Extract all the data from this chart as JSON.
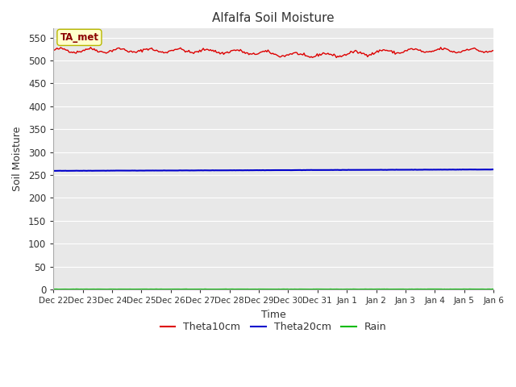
{
  "title": "Alfalfa Soil Moisture",
  "xlabel": "Time",
  "ylabel": "Soil Moisture",
  "annotation": "TA_met",
  "annotation_color": "#8b0000",
  "annotation_bg": "#ffffcc",
  "annotation_edge": "#b8b800",
  "ylim": [
    0,
    570
  ],
  "yticks": [
    0,
    50,
    100,
    150,
    200,
    250,
    300,
    350,
    400,
    450,
    500,
    550
  ],
  "x_labels": [
    "Dec 22",
    "Dec 23",
    "Dec 24",
    "Dec 25",
    "Dec 26",
    "Dec 27",
    "Dec 28",
    "Dec 29",
    "Dec 30",
    "Dec 31",
    "Jan 1",
    "Jan 2",
    "Jan 3",
    "Jan 4",
    "Jan 5",
    "Jan 6"
  ],
  "theta10_color": "#dd0000",
  "theta20_color": "#0000cc",
  "rain_color": "#00bb00",
  "bg_color": "#e8e8e8",
  "fig_bg_color": "#ffffff",
  "grid_color": "#ffffff",
  "legend_labels": [
    "Theta10cm",
    "Theta20cm",
    "Rain"
  ],
  "theta10_base": 522,
  "theta20_base": 259,
  "n_points": 368
}
